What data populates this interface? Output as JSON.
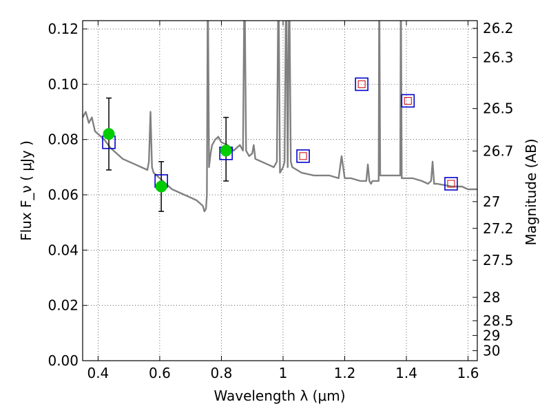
{
  "chart_data": {
    "type": "scatter",
    "xlabel": "Wavelength  λ (μm)",
    "ylabel": "Flux  F_ν  ( μJy )",
    "ylabel_right": "Magnitude (AB)",
    "xlim": [
      0.35,
      1.63
    ],
    "ylim": [
      0.0,
      0.123
    ],
    "grid": true,
    "x_ticks": [
      0.4,
      0.6,
      0.8,
      1.0,
      1.2,
      1.4,
      1.6
    ],
    "x_tick_labels": [
      "0.4",
      "0.6",
      "0.8",
      "1",
      "1.2",
      "1.4",
      "1.6"
    ],
    "y_ticks": [
      0.0,
      0.02,
      0.04,
      0.06,
      0.08,
      0.1,
      0.12
    ],
    "y_tick_labels": [
      "0.00",
      "0.02",
      "0.04",
      "0.06",
      "0.08",
      "0.10",
      "0.12"
    ],
    "right_ticks": [
      26.2,
      26.3,
      26.5,
      26.7,
      27,
      27.2,
      27.5,
      28,
      28.5,
      29,
      30
    ],
    "right_tick_labels": [
      "26.2",
      "26.3",
      "26.5",
      "26.7",
      "27",
      "27.2",
      "27.5",
      "28",
      "28.5",
      "29",
      "30"
    ],
    "series": [
      {
        "kind": "line",
        "color": "#808080",
        "x": [
          0.35,
          0.36,
          0.37,
          0.38,
          0.39,
          0.4,
          0.42,
          0.44,
          0.46,
          0.48,
          0.5,
          0.52,
          0.54,
          0.56,
          0.565,
          0.57,
          0.575,
          0.58,
          0.6,
          0.62,
          0.64,
          0.66,
          0.68,
          0.7,
          0.72,
          0.74,
          0.745,
          0.75,
          0.753,
          0.756,
          0.76,
          0.765,
          0.77,
          0.78,
          0.79,
          0.8,
          0.82,
          0.84,
          0.85,
          0.86,
          0.87,
          0.875,
          0.88,
          0.885,
          0.89,
          0.9,
          0.905,
          0.91,
          0.93,
          0.95,
          0.97,
          0.98,
          0.985,
          0.99,
          0.995,
          1.0,
          1.005,
          1.01,
          1.015,
          1.02,
          1.025,
          1.03,
          1.06,
          1.1,
          1.15,
          1.18,
          1.19,
          1.2,
          1.22,
          1.25,
          1.27,
          1.275,
          1.28,
          1.285,
          1.29,
          1.31,
          1.312,
          1.315,
          1.38,
          1.382,
          1.385,
          1.4,
          1.42,
          1.45,
          1.47,
          1.48,
          1.485,
          1.49,
          1.5,
          1.55,
          1.58,
          1.6,
          1.63
        ],
        "y": [
          0.088,
          0.09,
          0.086,
          0.088,
          0.083,
          0.082,
          0.08,
          0.077,
          0.075,
          0.073,
          0.072,
          0.071,
          0.07,
          0.069,
          0.072,
          0.09,
          0.07,
          0.068,
          0.066,
          0.064,
          0.062,
          0.061,
          0.06,
          0.059,
          0.058,
          0.056,
          0.054,
          0.055,
          0.06,
          0.14,
          0.07,
          0.075,
          0.078,
          0.08,
          0.081,
          0.079,
          0.078,
          0.076,
          0.077,
          0.078,
          0.076,
          0.14,
          0.076,
          0.075,
          0.074,
          0.075,
          0.078,
          0.073,
          0.072,
          0.071,
          0.07,
          0.072,
          0.14,
          0.068,
          0.069,
          0.07,
          0.072,
          0.14,
          0.07,
          0.14,
          0.072,
          0.07,
          0.068,
          0.067,
          0.067,
          0.066,
          0.074,
          0.066,
          0.066,
          0.065,
          0.065,
          0.071,
          0.065,
          0.064,
          0.065,
          0.065,
          0.14,
          0.067,
          0.067,
          0.14,
          0.066,
          0.066,
          0.066,
          0.065,
          0.064,
          0.065,
          0.072,
          0.064,
          0.064,
          0.063,
          0.063,
          0.062,
          0.062
        ]
      },
      {
        "kind": "errorbar",
        "marker": "circle",
        "color": "#00cc00",
        "x": [
          0.435,
          0.605,
          0.815
        ],
        "y": [
          0.082,
          0.063,
          0.076
        ],
        "yerr_low": [
          0.069,
          0.054,
          0.065
        ],
        "yerr_high": [
          0.095,
          0.072,
          0.088
        ]
      },
      {
        "kind": "marker",
        "marker": "open-square",
        "color": "#0000cc",
        "x": [
          0.435,
          0.605,
          0.815,
          1.065,
          1.255,
          1.405,
          1.545
        ],
        "y": [
          0.079,
          0.065,
          0.075,
          0.074,
          0.1,
          0.094,
          0.064
        ]
      },
      {
        "kind": "marker",
        "marker": "small-open-square",
        "color": "#cc0000",
        "x": [
          1.065,
          1.255,
          1.405,
          1.545
        ],
        "y": [
          0.074,
          0.1,
          0.094,
          0.064
        ]
      }
    ]
  }
}
